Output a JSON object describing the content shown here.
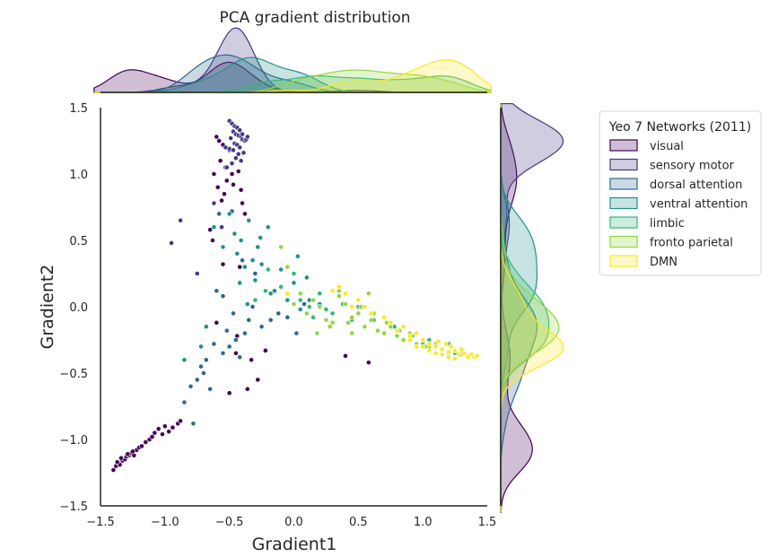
{
  "chart_data": {
    "type": "scatter",
    "title": "PCA gradient distribution",
    "xlabel": "Gradient1",
    "ylabel": "Gradient2",
    "xlim": [
      -1.5,
      1.5
    ],
    "ylim": [
      -1.5,
      1.5
    ],
    "xticks": [
      "−1.5",
      "−1.0",
      "−0.5",
      "0.0",
      "0.5",
      "1.0",
      "1.5"
    ],
    "xtick_values": [
      -1.5,
      -1.0,
      -0.5,
      0.0,
      0.5,
      1.0,
      1.5
    ],
    "yticks": [
      "1.5",
      "1.0",
      "0.5",
      "0.0",
      "−0.5",
      "−1.0",
      "−1.5"
    ],
    "ytick_values": [
      1.5,
      1.0,
      0.5,
      0.0,
      -0.5,
      -1.0,
      -1.5
    ],
    "grid": false,
    "legend": {
      "title": "Yeo 7 Networks (2011)",
      "placement": "outside-right"
    },
    "series": [
      {
        "name": "visual",
        "color": "#440154",
        "x": [
          -1.4,
          -1.38,
          -1.36,
          -1.35,
          -1.33,
          -1.31,
          -1.3,
          -1.28,
          -1.26,
          -1.24,
          -1.22,
          -1.2,
          -1.18,
          -1.15,
          -1.12,
          -1.1,
          -1.08,
          -1.05,
          -1.02,
          -1.0,
          -0.97,
          -0.94,
          -0.9,
          -0.88,
          -1.37,
          -1.34,
          -1.29,
          -1.25,
          -0.6,
          -0.58,
          -0.55,
          -0.57,
          -0.53,
          -0.5,
          -0.48,
          -0.52,
          -0.45,
          -0.47,
          -0.43,
          -0.41,
          -0.62,
          -0.59,
          -0.56,
          -0.54,
          -0.4,
          -0.38,
          -0.65,
          -0.63,
          -0.55,
          -0.42,
          -0.36,
          -0.5,
          -0.28,
          -0.33,
          -0.6,
          -0.45,
          -0.22,
          0.4,
          0.58,
          -0.44
        ],
        "y": [
          -1.23,
          -1.2,
          -1.18,
          -1.19,
          -1.16,
          -1.15,
          -1.13,
          -1.12,
          -1.1,
          -1.12,
          -1.08,
          -1.06,
          -1.05,
          -1.02,
          -1.0,
          -0.98,
          -0.95,
          -0.92,
          -0.96,
          -0.9,
          -0.94,
          -0.91,
          -0.88,
          -0.86,
          -1.17,
          -1.14,
          -1.11,
          -1.09,
          1.28,
          1.25,
          1.22,
          1.1,
          1.05,
          1.18,
          1.0,
          0.95,
          1.12,
          0.92,
          1.02,
          0.88,
          1.0,
          0.9,
          0.8,
          0.85,
          0.78,
          0.7,
          0.58,
          0.5,
          0.32,
          0.3,
          -0.62,
          -0.65,
          -0.55,
          -0.4,
          -0.12,
          -0.35,
          -0.33,
          -0.37,
          -0.42,
          -0.22
        ]
      },
      {
        "name": "sensory motor",
        "color": "#443983",
        "x": [
          -0.5,
          -0.48,
          -0.46,
          -0.44,
          -0.42,
          -0.47,
          -0.45,
          -0.43,
          -0.41,
          -0.49,
          -0.4,
          -0.38,
          -0.46,
          -0.44,
          -0.42,
          -0.5,
          -0.47,
          -0.39,
          -0.43,
          -0.45,
          -0.41,
          -0.48,
          -0.37,
          -0.4,
          -0.52,
          -0.36,
          -0.95,
          -0.88,
          -0.75,
          -0.62,
          -0.56,
          -0.53
        ],
        "y": [
          1.4,
          1.38,
          1.36,
          1.35,
          1.33,
          1.32,
          1.3,
          1.29,
          1.28,
          1.27,
          1.26,
          1.25,
          1.23,
          1.22,
          1.2,
          1.19,
          1.18,
          1.16,
          1.15,
          1.12,
          1.1,
          1.08,
          1.26,
          1.3,
          1.05,
          1.28,
          0.48,
          0.65,
          0.25,
          0.78,
          0.6,
          1.2
        ]
      },
      {
        "name": "dorsal attention",
        "color": "#31688e",
        "x": [
          -0.85,
          -0.8,
          -0.75,
          -0.72,
          -0.68,
          -0.62,
          -0.55,
          -0.5,
          -0.45,
          -0.42,
          -0.38,
          -0.58,
          -0.48,
          -0.35,
          -0.32,
          -0.6,
          -0.55,
          -0.52,
          -0.47,
          -0.4,
          -0.3,
          -0.25,
          -0.18,
          -0.12,
          -0.05,
          0.02,
          0.08,
          -0.7,
          -0.78,
          -0.65
        ],
        "y": [
          -0.72,
          -0.6,
          -0.55,
          -0.45,
          -0.4,
          -0.28,
          -0.35,
          -0.3,
          -0.25,
          -0.38,
          -0.2,
          0.7,
          0.72,
          -0.1,
          0.0,
          0.12,
          0.08,
          -0.18,
          -0.05,
          0.35,
          0.25,
          -0.15,
          -0.1,
          -0.05,
          -0.08,
          -0.2,
          0.02,
          -0.5,
          -0.88,
          -0.62
        ]
      },
      {
        "name": "ventral attention",
        "color": "#21918c",
        "x": [
          -0.85,
          -0.72,
          -0.68,
          -0.62,
          -0.55,
          -0.5,
          -0.46,
          -0.44,
          -0.41,
          -0.38,
          -0.35,
          -0.32,
          -0.3,
          -0.28,
          -0.25,
          -0.2,
          -0.15,
          -0.1,
          -0.05,
          0.0,
          0.05,
          0.1,
          -0.42,
          -0.36,
          -0.26,
          -0.18,
          0.03,
          0.12,
          0.2
        ],
        "y": [
          -0.4,
          -0.3,
          -0.15,
          0.6,
          0.45,
          0.7,
          0.55,
          0.4,
          0.5,
          0.3,
          0.65,
          0.35,
          0.2,
          0.45,
          0.32,
          0.6,
          0.12,
          0.28,
          0.05,
          0.18,
          -0.02,
          0.22,
          0.18,
          0.02,
          0.52,
          0.1,
          0.38,
          0.05,
          0.02
        ]
      },
      {
        "name": "limbic",
        "color": "#35b779",
        "x": [
          -0.2,
          -0.1,
          0.0,
          0.05,
          0.12,
          0.2,
          0.3,
          0.38,
          0.45,
          0.5,
          0.55,
          0.62,
          0.7,
          0.78,
          0.85,
          0.9,
          1.0,
          1.05,
          1.1,
          1.15,
          1.2,
          1.25,
          1.3,
          1.35,
          -0.3,
          -0.22,
          0.15,
          0.25
        ],
        "y": [
          0.28,
          0.15,
          0.25,
          0.05,
          0.0,
          0.1,
          -0.05,
          0.02,
          -0.1,
          0.0,
          -0.15,
          -0.1,
          -0.2,
          -0.15,
          -0.25,
          -0.22,
          -0.28,
          -0.25,
          -0.3,
          -0.32,
          -0.28,
          -0.35,
          -0.33,
          -0.38,
          0.05,
          0.12,
          -0.08,
          -0.02
        ]
      },
      {
        "name": "fronto parietal",
        "color": "#90d743",
        "x": [
          -0.1,
          -0.05,
          0.0,
          0.05,
          0.1,
          0.15,
          0.2,
          0.25,
          0.3,
          0.35,
          0.4,
          0.45,
          0.5,
          0.55,
          0.6,
          0.65,
          0.7,
          0.75,
          0.8,
          0.85,
          0.9,
          0.95,
          1.0,
          1.05,
          1.1,
          1.15,
          1.2,
          1.25,
          1.3,
          0.18,
          0.28,
          0.42,
          0.52,
          0.62,
          0.72,
          0.82,
          0.92,
          1.02,
          0.35,
          0.45,
          0.58
        ],
        "y": [
          0.45,
          0.3,
          0.02,
          0.1,
          -0.05,
          0.05,
          0.0,
          -0.1,
          -0.12,
          0.12,
          0.02,
          -0.08,
          -0.05,
          -0.15,
          -0.1,
          -0.18,
          -0.2,
          -0.15,
          -0.22,
          -0.25,
          -0.2,
          -0.28,
          -0.25,
          -0.3,
          -0.28,
          -0.32,
          -0.35,
          -0.33,
          -0.36,
          -0.2,
          -0.15,
          -0.12,
          0.0,
          -0.05,
          -0.12,
          -0.18,
          -0.22,
          -0.3,
          0.08,
          -0.2,
          0.1
        ]
      },
      {
        "name": "DMN",
        "color": "#fde725",
        "x": [
          -0.05,
          0.3,
          0.35,
          0.4,
          0.5,
          0.55,
          0.6,
          0.7,
          0.75,
          0.8,
          0.85,
          0.9,
          0.95,
          1.0,
          1.05,
          1.1,
          1.12,
          1.15,
          1.18,
          1.2,
          1.22,
          1.25,
          1.28,
          1.3,
          1.32,
          1.35,
          1.38,
          1.4,
          1.42,
          1.2,
          1.1,
          1.0,
          0.9,
          0.95,
          1.05,
          1.15,
          1.25,
          1.35,
          0.45
        ],
        "y": [
          0.1,
          0.12,
          0.15,
          0.1,
          0.05,
          0.0,
          -0.05,
          -0.08,
          -0.12,
          -0.18,
          -0.15,
          -0.22,
          -0.2,
          -0.25,
          -0.28,
          -0.3,
          -0.26,
          -0.32,
          -0.28,
          -0.34,
          -0.3,
          -0.33,
          -0.36,
          -0.32,
          -0.35,
          -0.37,
          -0.36,
          -0.38,
          -0.37,
          -0.38,
          -0.35,
          -0.3,
          -0.25,
          -0.3,
          -0.33,
          -0.36,
          -0.39,
          -0.38,
          0.0
        ]
      }
    ]
  }
}
